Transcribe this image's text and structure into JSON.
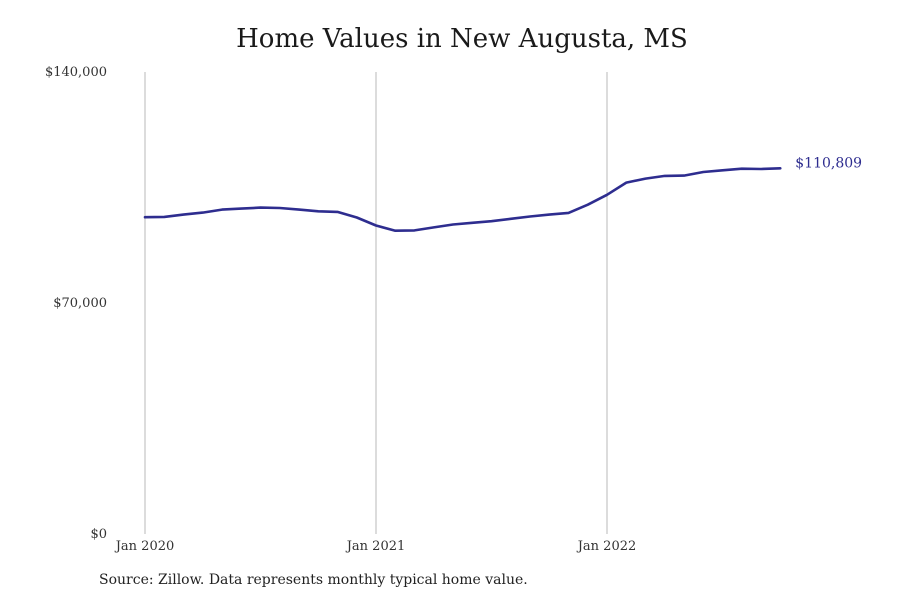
{
  "chart_data": {
    "type": "line",
    "title": "Home Values in New Augusta, MS",
    "xlabel": "",
    "ylabel": "",
    "x_ticks": [
      "Jan 2020",
      "Jan 2021",
      "Jan 2022"
    ],
    "y_ticks": [
      "$0",
      "$70,000",
      "$140,000"
    ],
    "ylim": [
      0,
      140000
    ],
    "grid": "vertical lines at x ticks",
    "line_color": "#2e2d8f",
    "gridline_color": "#b8b8b8",
    "end_label": "$110,809",
    "series": [
      {
        "x": [
          "Jan 2020",
          "Feb 2020",
          "Mar 2020",
          "Apr 2020",
          "May 2020",
          "Jun 2020",
          "Jul 2020",
          "Aug 2020",
          "Sep 2020",
          "Oct 2020",
          "Nov 2020",
          "Dec 2020",
          "Jan 2021",
          "Feb 2021",
          "Mar 2021",
          "Apr 2021",
          "May 2021",
          "Jun 2021",
          "Jul 2021",
          "Aug 2021",
          "Sep 2021",
          "Oct 2021",
          "Nov 2021",
          "Dec 2021",
          "Jan 2022",
          "Feb 2022",
          "Mar 2022",
          "Apr 2022",
          "May 2022",
          "Jun 2022",
          "Jul 2022",
          "Aug 2022",
          "Sep 2022",
          "Oct 2022"
        ],
        "values": [
          96000,
          96100,
          96800,
          97400,
          98300,
          98600,
          98900,
          98800,
          98300,
          97800,
          97600,
          95900,
          93500,
          91900,
          92000,
          92900,
          93800,
          94300,
          94800,
          95500,
          96200,
          96800,
          97300,
          99800,
          102800,
          106500,
          107700,
          108500,
          108600,
          109700,
          110200,
          110700,
          110600,
          110809
        ]
      }
    ]
  },
  "source_text": "Source: Zillow. Data represents monthly typical home value."
}
